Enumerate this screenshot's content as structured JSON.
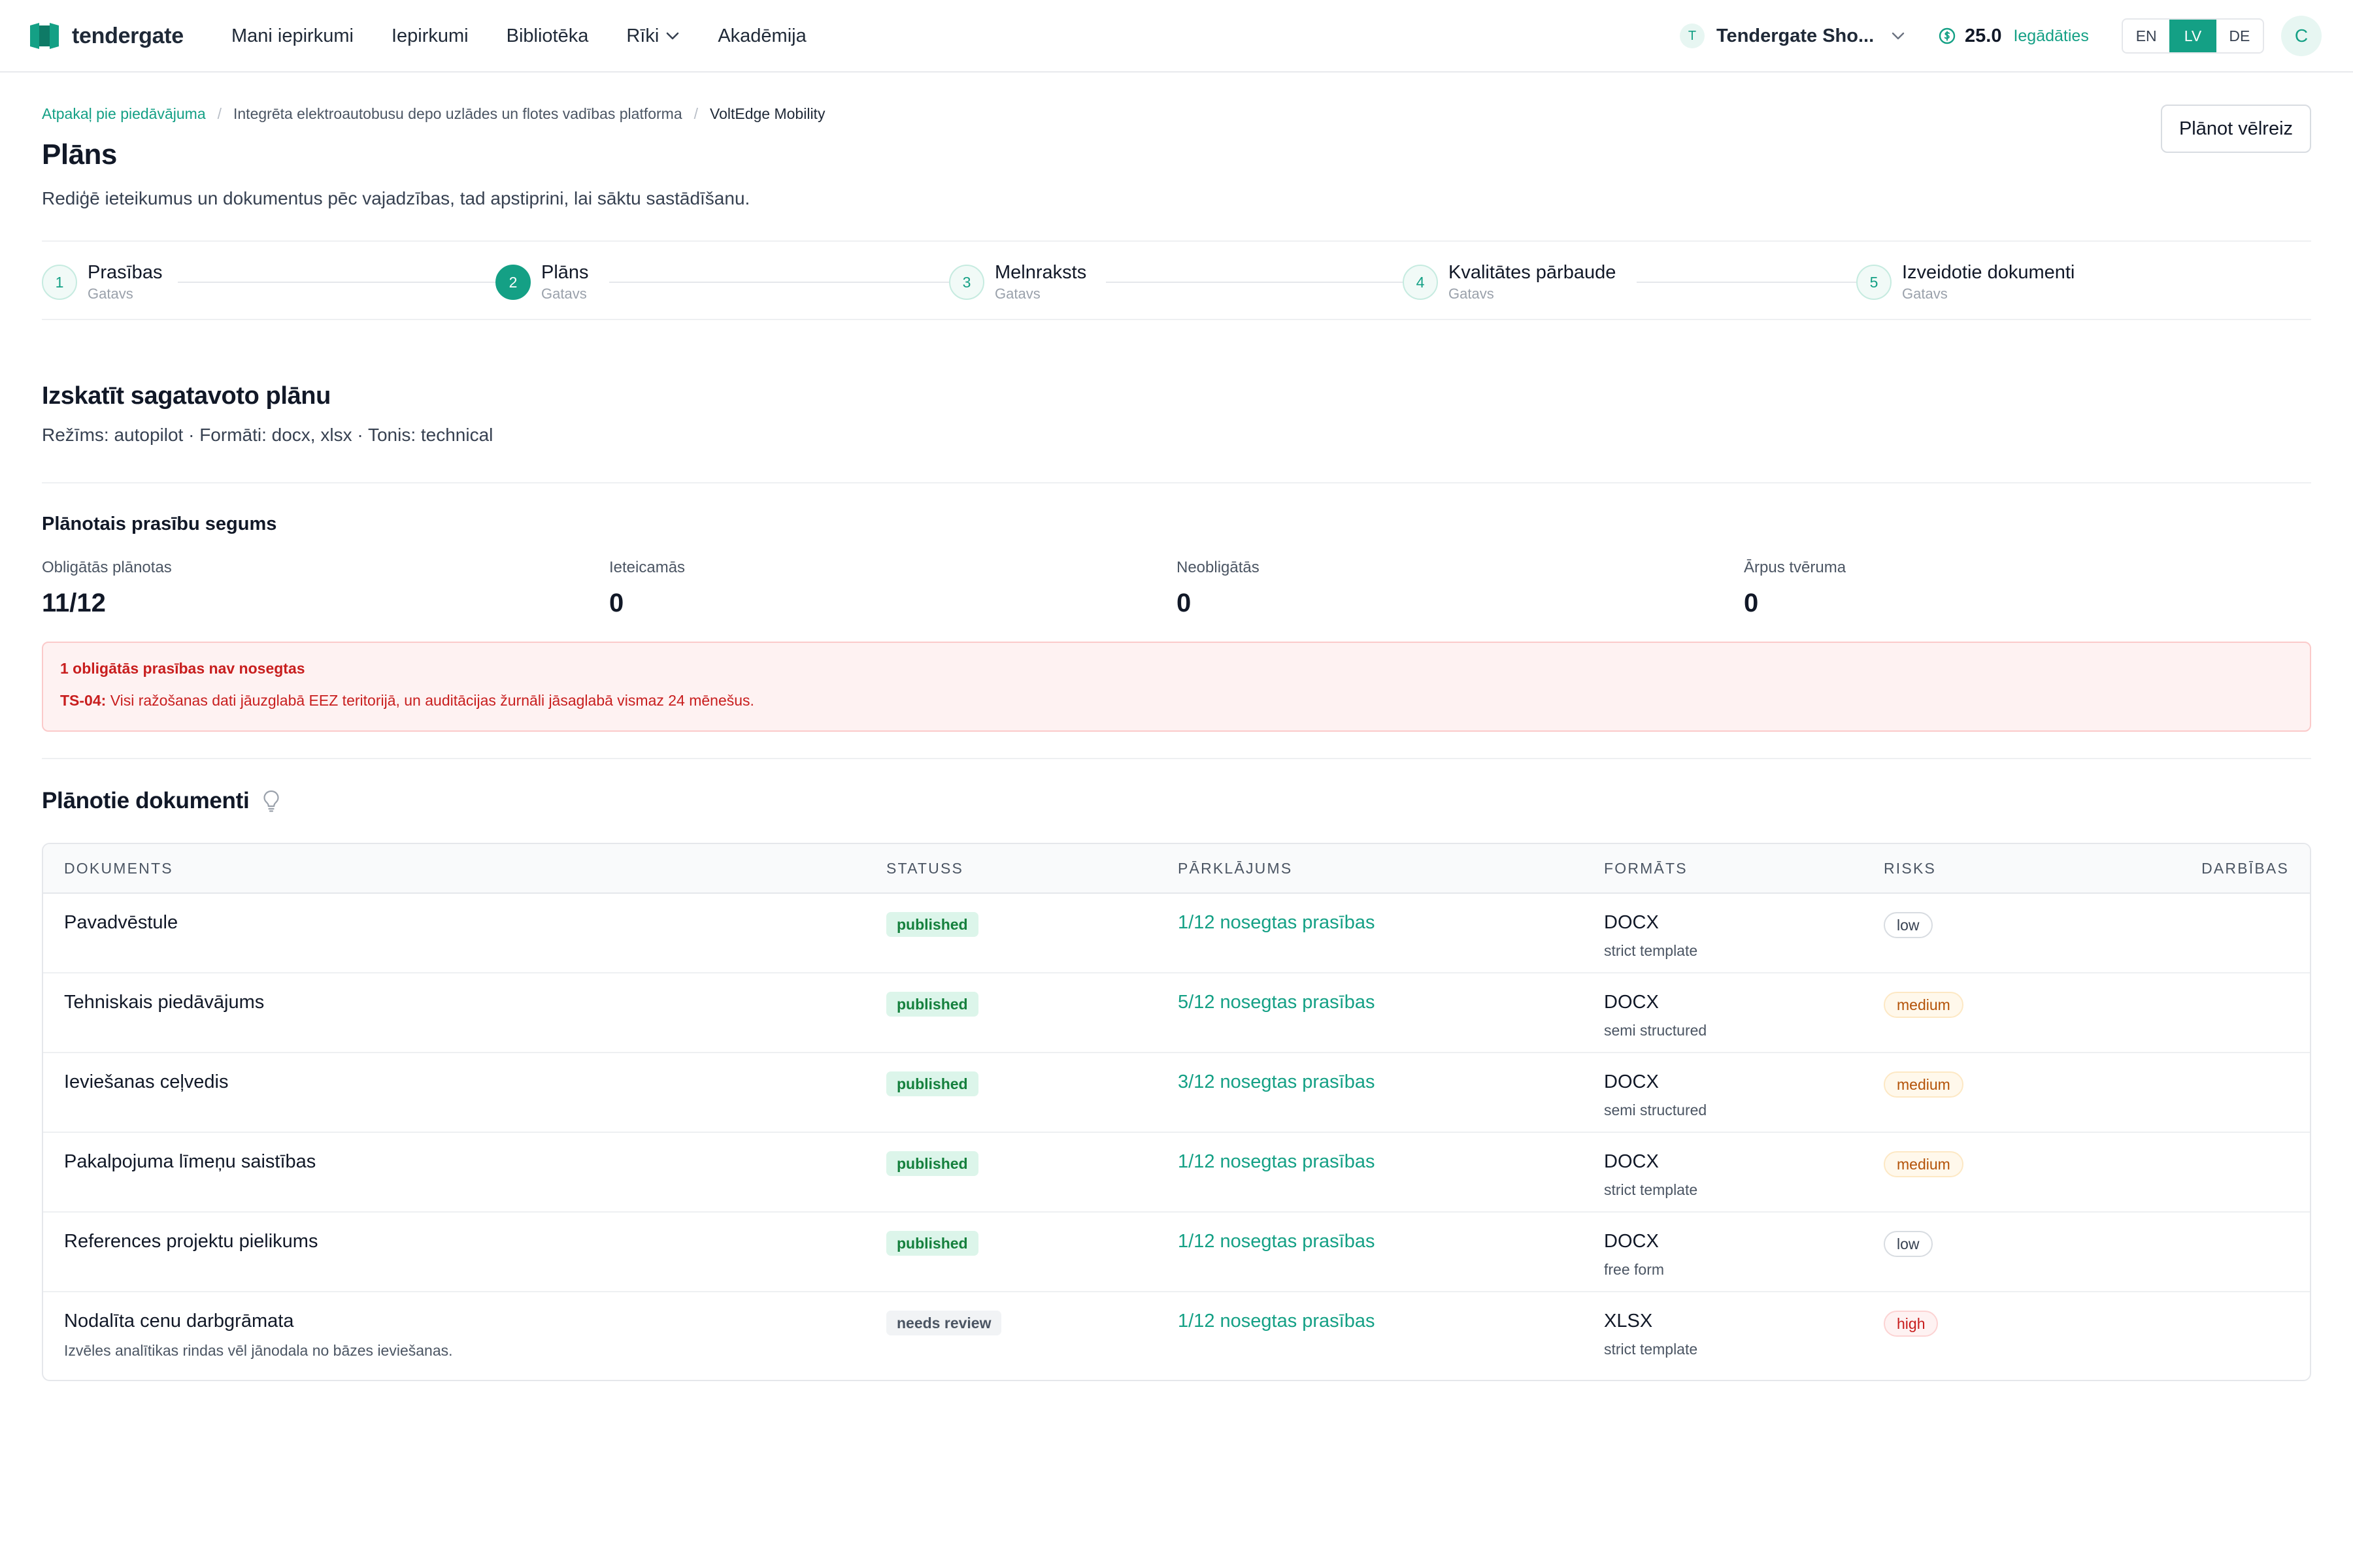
{
  "nav": {
    "logo_text": "tendergate",
    "items": [
      {
        "label": "Mani iepirkumi"
      },
      {
        "label": "Iepirkumi"
      },
      {
        "label": "Bibliotēka"
      },
      {
        "label": "Rīki"
      },
      {
        "label": "Akadēmija"
      }
    ],
    "workspace": {
      "initial": "T",
      "name": "Tendergate Sho..."
    },
    "credits": {
      "value": "25.0",
      "link": "Iegādāties"
    },
    "languages": [
      "EN",
      "LV",
      "DE"
    ],
    "active_language": "LV",
    "avatar_initial": "C"
  },
  "header": {
    "breadcrumb": {
      "back": "Atpakaļ pie piedāvājuma",
      "tender": "Integrēta elektroautobusu depo uzlādes un flotes vadības platforma",
      "company": "VoltEdge Mobility"
    },
    "title": "Plāns",
    "subtitle": "Rediģē ieteikumus un dokumentus pēc vajadzības, tad apstiprini, lai sāktu sastādīšanu.",
    "replan_button": "Plānot vēlreiz"
  },
  "stepper": [
    {
      "number": "1",
      "label": "Prasības",
      "status": "Gatavs"
    },
    {
      "number": "2",
      "label": "Plāns",
      "status": "Gatavs"
    },
    {
      "number": "3",
      "label": "Melnraksts",
      "status": "Gatavs"
    },
    {
      "number": "4",
      "label": "Kvalitātes pārbaude",
      "status": "Gatavs"
    },
    {
      "number": "5",
      "label": "Izveidotie dokumenti",
      "status": "Gatavs"
    }
  ],
  "review": {
    "title": "Izskatīt sagatavoto plānu",
    "meta": "Režīms: autopilot · Formāti: docx, xlsx · Tonis: technical"
  },
  "coverage": {
    "title": "Plānotais prasību segums",
    "stats": [
      {
        "label": "Obligātās plānotas",
        "value": "11/12"
      },
      {
        "label": "Ieteicamās",
        "value": "0"
      },
      {
        "label": "Neobligātās",
        "value": "0"
      },
      {
        "label": "Ārpus tvēruma",
        "value": "0"
      }
    ]
  },
  "alert": {
    "title": "1 obligātās prasības nav nosegtas",
    "code": "TS-04:",
    "text": "Visi ražošanas dati jāuzglabā EEZ teritorijā, un auditācijas žurnāli jāsaglabā vismaz 24 mēnešus."
  },
  "documents": {
    "title": "Plānotie dokumenti",
    "columns": [
      "Dokuments",
      "Statuss",
      "Pārklājums",
      "Formāts",
      "Risks",
      "Darbības"
    ],
    "rows": [
      {
        "name": "Pavadvēstule",
        "note": "",
        "status": "published",
        "coverage": "1/12 nosegtas prasības",
        "format": "DOCX",
        "format_mode": "strict template",
        "risk": "low"
      },
      {
        "name": "Tehniskais piedāvājums",
        "note": "",
        "status": "published",
        "coverage": "5/12 nosegtas prasības",
        "format": "DOCX",
        "format_mode": "semi structured",
        "risk": "medium"
      },
      {
        "name": "Ieviešanas ceļvedis",
        "note": "",
        "status": "published",
        "coverage": "3/12 nosegtas prasības",
        "format": "DOCX",
        "format_mode": "semi structured",
        "risk": "medium"
      },
      {
        "name": "Pakalpojuma līmeņu saistības",
        "note": "",
        "status": "published",
        "coverage": "1/12 nosegtas prasības",
        "format": "DOCX",
        "format_mode": "strict template",
        "risk": "medium"
      },
      {
        "name": "References projektu pielikums",
        "note": "",
        "status": "published",
        "coverage": "1/12 nosegtas prasības",
        "format": "DOCX",
        "format_mode": "free form",
        "risk": "low"
      },
      {
        "name": "Nodalīta cenu darbgrāmata",
        "note": "Izvēles analītikas rindas vēl jānodala no bāzes ieviešanas.",
        "status": "needs review",
        "coverage": "1/12 nosegtas prasības",
        "format": "XLSX",
        "format_mode": "strict template",
        "risk": "high"
      }
    ]
  },
  "colors": {
    "accent": "#14a085",
    "danger": "#c81e1e",
    "warning": "#b45309"
  }
}
